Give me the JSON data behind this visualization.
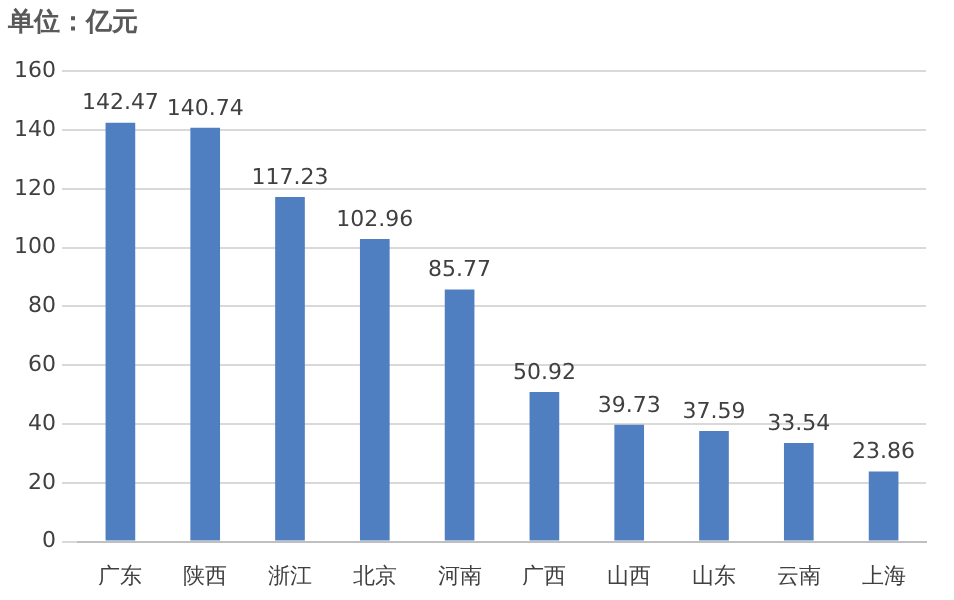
{
  "chart_data": {
    "type": "bar",
    "title": "单位：亿元",
    "categories": [
      "广东",
      "陕西",
      "浙江",
      "北京",
      "河南",
      "广西",
      "山西",
      "山东",
      "云南",
      "上海"
    ],
    "values": [
      142.47,
      140.74,
      117.23,
      102.96,
      85.77,
      50.92,
      39.73,
      37.59,
      33.54,
      23.86
    ],
    "color": "#4f7fc0",
    "ylim": [
      0,
      160
    ],
    "yticks": [
      0,
      20,
      40,
      60,
      80,
      100,
      120,
      140,
      160
    ],
    "grid": "y",
    "data_labels": true
  }
}
